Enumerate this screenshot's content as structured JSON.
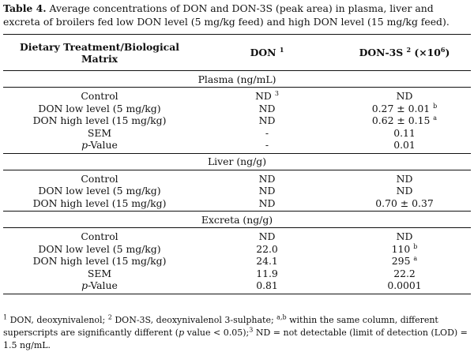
{
  "caption": {
    "label": "Table 4.",
    "text": " Average concentrations of DON and DON-3S (peak area) in plasma, liver and excreta of broilers fed low DON level (5 mg/kg feed) and high DON level (15 mg/kg feed)."
  },
  "header": {
    "col1": "Dietary Treatment/Biological Matrix",
    "col2": "DON",
    "col2_sup": "1",
    "col3": "DON-3S",
    "col3_sup": "2",
    "col3_suffix": " (×10",
    "col3_exp": "6",
    "col3_close": ")"
  },
  "sections": {
    "plasma": {
      "title": "Plasma (ng/mL)",
      "rows": [
        {
          "label": "Control",
          "don": "ND",
          "don_sup": "3",
          "don3s": "ND",
          "don3s_sup": ""
        },
        {
          "label": "DON low level (5 mg/kg)",
          "don": "ND",
          "don_sup": "",
          "don3s": "0.27 ± 0.01",
          "don3s_sup": "b"
        },
        {
          "label": "DON high level (15 mg/kg)",
          "don": "ND",
          "don_sup": "",
          "don3s": "0.62 ± 0.15",
          "don3s_sup": "a"
        },
        {
          "label": "SEM",
          "don": "-",
          "don_sup": "",
          "don3s": "0.11",
          "don3s_sup": ""
        },
        {
          "label_italic": "p",
          "label": "-Value",
          "don": "-",
          "don_sup": "",
          "don3s": "0.01",
          "don3s_sup": ""
        }
      ]
    },
    "liver": {
      "title": "Liver (ng/g)",
      "rows": [
        {
          "label": "Control",
          "don": "ND",
          "don3s": "ND"
        },
        {
          "label": "DON low level (5 mg/kg)",
          "don": "ND",
          "don3s": "ND"
        },
        {
          "label": "DON high level (15 mg/kg)",
          "don": "ND",
          "don3s": "0.70 ± 0.37"
        }
      ]
    },
    "excreta": {
      "title": "Excreta (ng/g)",
      "rows": [
        {
          "label": "Control",
          "don": "ND",
          "don3s": "ND",
          "don3s_sup": ""
        },
        {
          "label": "DON low level (5 mg/kg)",
          "don": "22.0",
          "don3s": "110",
          "don3s_sup": "b"
        },
        {
          "label": "DON high level (15 mg/kg)",
          "don": "24.1",
          "don3s": "295",
          "don3s_sup": "a"
        },
        {
          "label": "SEM",
          "don": "11.9",
          "don3s": "22.2",
          "don3s_sup": ""
        },
        {
          "label_italic": "p",
          "label": "-Value",
          "don": "0.81",
          "don3s": "0.0001",
          "don3s_sup": ""
        }
      ]
    }
  },
  "footnote": {
    "sup1": "1",
    "t1": " DON, deoxynivalenol; ",
    "sup2": "2",
    "t2": " DON-3S, deoxynivalenol 3-sulphate; ",
    "sup3": "a,b",
    "t3": " within the same column, different superscripts are significantly different (",
    "p_italic": "p",
    "t4": " value < 0.05);",
    "sup4": "3",
    "t5": " ND = not detectable (limit of detection (LOD) = 1.5 ng/mL."
  }
}
